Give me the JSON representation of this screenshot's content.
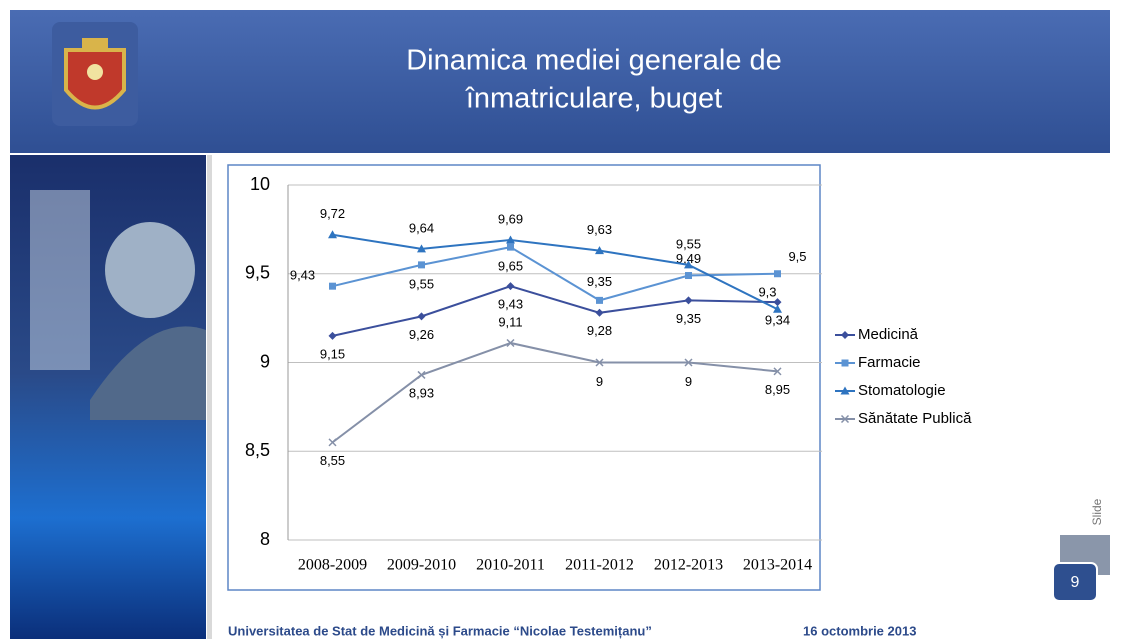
{
  "slide": {
    "title_lines": [
      "Dinamica mediei generale de",
      "înmatriculare, buget"
    ],
    "footer": "Universitatea de Stat de Medicină și Farmacie “Nicolae Testemițanu”",
    "date": "16 octombrie 2013",
    "slide_label": "Slide",
    "number": "9"
  },
  "chart_data": {
    "type": "line",
    "categories": [
      "2008-2009",
      "2009-2010",
      "2010-2011",
      "2011-2012",
      "2012-2013",
      "2013-2014"
    ],
    "series": [
      {
        "name": "Medicină",
        "color": "#3b4f9c",
        "marker": "diamond",
        "values": [
          9.15,
          9.26,
          9.43,
          9.28,
          9.35,
          9.34
        ],
        "value_labels": [
          "9,15",
          "9,26",
          "9,43",
          "9,28",
          "9,35",
          "9,34"
        ]
      },
      {
        "name": "Farmacie",
        "color": "#5b93d3",
        "marker": "square",
        "values": [
          9.43,
          9.55,
          9.65,
          9.35,
          9.49,
          9.5
        ],
        "value_labels": [
          "9,43",
          "9,55",
          "9,65",
          "9,35",
          "9,49",
          "9,5"
        ]
      },
      {
        "name": "Stomatologie",
        "color": "#2e74c0",
        "marker": "triangle",
        "values": [
          9.72,
          9.64,
          9.69,
          9.63,
          9.55,
          9.3
        ],
        "value_labels": [
          "9,72",
          "9,64",
          "9,69",
          "9,63",
          "9,55",
          "9,3"
        ]
      },
      {
        "name": "Sănătate Publică",
        "color": "#8590a8",
        "marker": "x",
        "values": [
          8.55,
          8.93,
          9.11,
          9,
          9,
          8.95
        ],
        "value_labels": [
          "8,55",
          "8,93",
          "9,11",
          "9",
          "9",
          "8,95"
        ]
      }
    ],
    "ylim": [
      8,
      10
    ],
    "yticks": [
      8,
      {
        "value": 8.5,
        "label": "8,5"
      },
      9,
      {
        "value": 9.5,
        "label": "9,5"
      },
      10
    ],
    "grid": true,
    "legend": "right"
  }
}
